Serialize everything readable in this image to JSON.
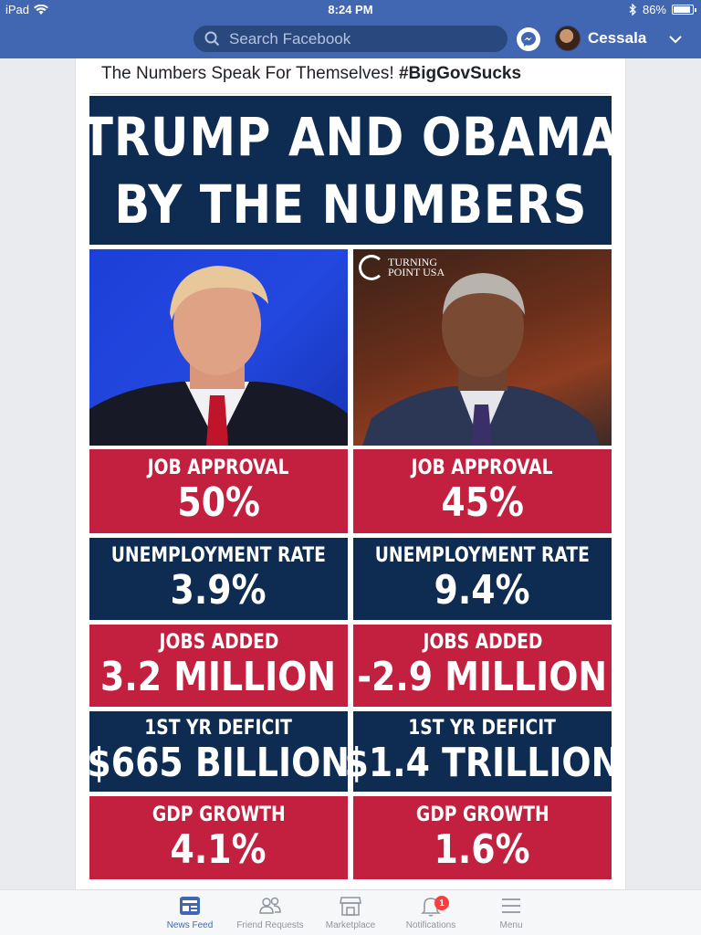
{
  "status_bar": {
    "device": "iPad",
    "time": "8:24 PM",
    "battery": "86%",
    "battery_level": 0.86
  },
  "header": {
    "search_placeholder": "Search Facebook",
    "user_name": "Cessala",
    "icons": [
      "search-icon",
      "messenger-icon",
      "avatar",
      "chevron-down-icon"
    ],
    "colors": {
      "bar": "#4267b2",
      "search": "#29487d"
    }
  },
  "post": {
    "caption_text": "The Numbers Speak For Themselves! ",
    "caption_hashtag": "#BigGovSucks"
  },
  "infographic": {
    "title_line1": "TRUMP AND OBAMA",
    "title_line2": "BY THE NUMBERS",
    "logo_line1": "TURNING",
    "logo_line2": "POINT USA",
    "colors": {
      "navy": "#0e2b52",
      "red": "#c3203f"
    },
    "rows": [
      {
        "label": "JOB APPROVAL",
        "left": "50%",
        "right": "45%",
        "color": "red"
      },
      {
        "label": "UNEMPLOYMENT RATE",
        "left": "3.9%",
        "right": "9.4%",
        "color": "navy"
      },
      {
        "label": "JOBS ADDED",
        "left": "3.2 MILLION",
        "right": "-2.9 MILLION",
        "color": "red"
      },
      {
        "label": "1ST YR DEFICIT",
        "left": "$665 BILLION",
        "right": "$1.4 TRILLION",
        "color": "navy"
      },
      {
        "label": "GDP GROWTH",
        "left": "4.1%",
        "right": "1.6%",
        "color": "red"
      }
    ]
  },
  "bottom_nav": {
    "items": [
      {
        "label": "News Feed",
        "icon": "news-feed-icon",
        "active": true
      },
      {
        "label": "Friend Requests",
        "icon": "friends-icon"
      },
      {
        "label": "Marketplace",
        "icon": "marketplace-icon"
      },
      {
        "label": "Notifications",
        "icon": "bell-icon",
        "badge": "1"
      },
      {
        "label": "Menu",
        "icon": "hamburger-icon"
      }
    ]
  }
}
